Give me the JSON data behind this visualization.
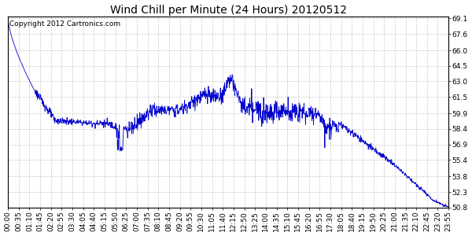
{
  "title": "Wind Chill per Minute (24 Hours) 20120512",
  "copyright_text": "Copyright 2012 Cartronics.com",
  "line_color": "#0000cc",
  "background_color": "#ffffff",
  "grid_color": "#c8c8c8",
  "ymin": 50.8,
  "ymax": 69.1,
  "yticks": [
    50.8,
    52.3,
    53.8,
    55.4,
    56.9,
    58.4,
    59.9,
    61.5,
    63.0,
    64.5,
    66.0,
    67.6,
    69.1
  ],
  "xtick_labels": [
    "00:00",
    "00:35",
    "01:10",
    "01:45",
    "02:20",
    "02:55",
    "03:30",
    "04:05",
    "04:40",
    "05:15",
    "05:50",
    "06:25",
    "07:00",
    "07:35",
    "08:10",
    "08:45",
    "09:20",
    "09:55",
    "10:30",
    "11:05",
    "11:40",
    "12:15",
    "12:50",
    "13:25",
    "14:00",
    "14:35",
    "15:10",
    "15:45",
    "16:20",
    "16:55",
    "17:30",
    "18:05",
    "18:40",
    "19:15",
    "19:50",
    "20:25",
    "21:00",
    "21:35",
    "22:10",
    "22:45",
    "23:20",
    "23:55"
  ],
  "title_fontsize": 10,
  "tick_fontsize": 6.5,
  "copyright_fontsize": 6.5
}
